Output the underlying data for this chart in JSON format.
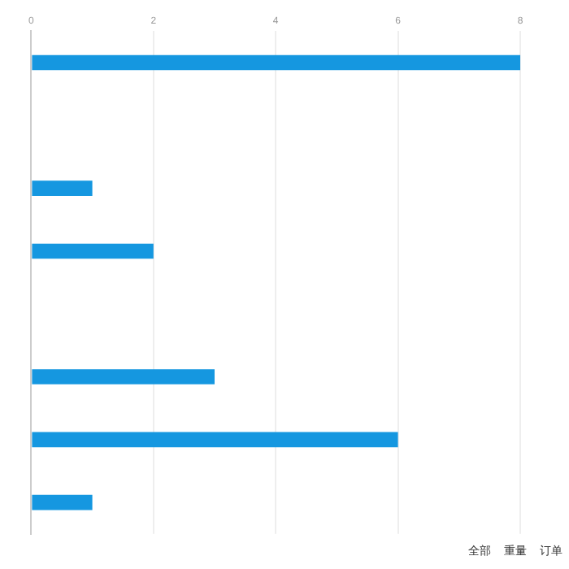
{
  "chart_data": {
    "type": "bar",
    "orientation": "horizontal",
    "categories": [
      null,
      null,
      null,
      null,
      null,
      null,
      null,
      null
    ],
    "values": [
      8,
      0,
      1,
      2,
      0,
      3,
      6,
      1
    ],
    "color": "#1597e0",
    "xlim": [
      0,
      8
    ],
    "xticks": [
      0,
      2,
      4,
      6,
      8
    ],
    "grid": "x",
    "legend": false,
    "annotations": [
      "全部",
      "重量",
      "订单"
    ]
  }
}
